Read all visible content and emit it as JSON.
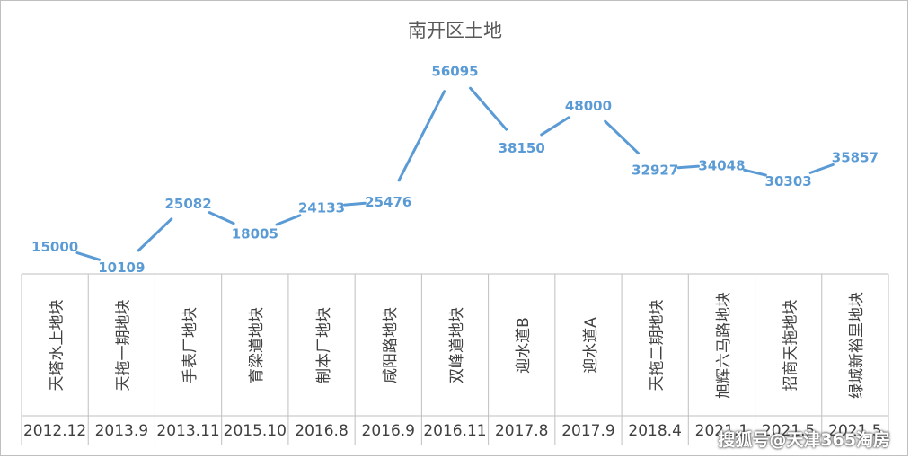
{
  "chart_data": {
    "type": "line",
    "title": "南开区土地",
    "categories": [
      {
        "name": "天塔水上地块",
        "date": "2012.12"
      },
      {
        "name": "天拖一期地块",
        "date": "2013.9"
      },
      {
        "name": "手表厂地块",
        "date": "2013.11"
      },
      {
        "name": "育梁道地块",
        "date": "2015.10"
      },
      {
        "name": "制本厂地块",
        "date": "2016.8"
      },
      {
        "name": "咸阳路地块",
        "date": "2016.9"
      },
      {
        "name": "双峰道地块",
        "date": "2016.11"
      },
      {
        "name": "迎水道B",
        "date": "2017.8"
      },
      {
        "name": "迎水道A",
        "date": "2017.9"
      },
      {
        "name": "天拖二期地块",
        "date": "2018.4"
      },
      {
        "name": "旭辉六马路地块",
        "date": "2021.1"
      },
      {
        "name": "招商天拖地块",
        "date": "2021.5"
      },
      {
        "name": "绿城新裕里地块",
        "date": "2021.5"
      }
    ],
    "values": [
      15000,
      10109,
      25082,
      18005,
      24133,
      25476,
      56095,
      38150,
      48000,
      32927,
      34048,
      30303,
      35857
    ],
    "line_color": "#5b9bd5",
    "label_color": "#5b9bd5",
    "grid": false,
    "legend": "none"
  },
  "watermark": "搜狐号@天津365淘房"
}
